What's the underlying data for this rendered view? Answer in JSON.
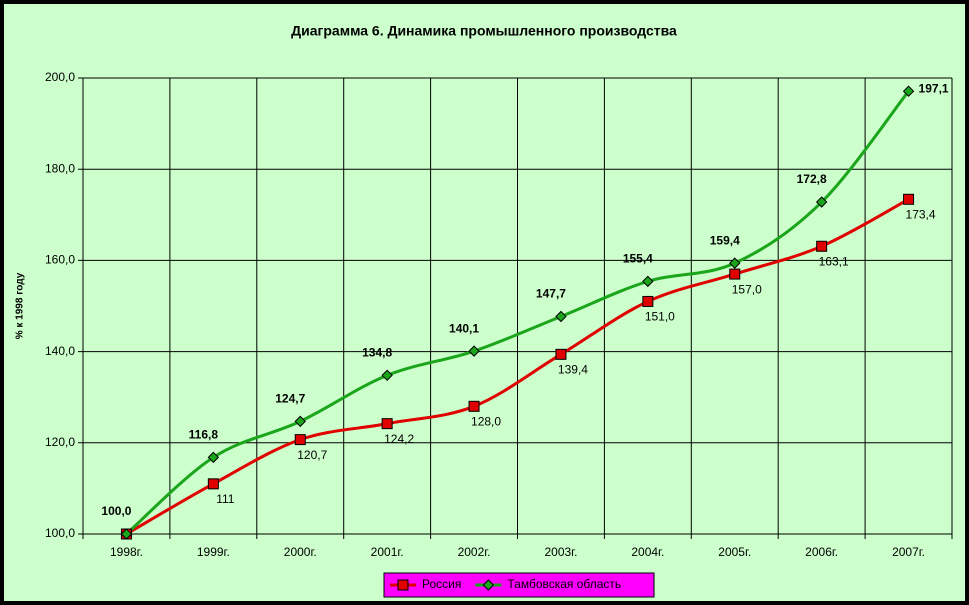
{
  "chart_data": {
    "type": "line",
    "title": "Диаграмма 6. Динамика промышленного производства",
    "y_label": "% к 1998 году",
    "categories": [
      "1998г.",
      "1999г.",
      "2000г.",
      "2001г.",
      "2002г.",
      "2003г.",
      "2004г.",
      "2005г.",
      "2006г.",
      "2007г."
    ],
    "series": [
      {
        "name": "Россия",
        "color": "#e00000",
        "marker": "square",
        "values": [
          100.0,
          111,
          120.7,
          124.2,
          128.0,
          139.4,
          151.0,
          157.0,
          163.1,
          173.4
        ],
        "value_labels": [
          null,
          "111",
          "120,7",
          "124,2",
          "128,0",
          "139,4",
          "151,0",
          "157,0",
          "163,1",
          "173,4"
        ]
      },
      {
        "name": "Тамбовская область",
        "color": "#1aa51a",
        "marker": "diamond",
        "values": [
          100.0,
          116.8,
          124.7,
          134.8,
          140.1,
          147.7,
          155.4,
          159.4,
          172.8,
          197.1
        ],
        "value_labels": [
          "100,0",
          "116,8",
          "124,7",
          "134,8",
          "140,1",
          "147,7",
          "155,4",
          "159,4",
          "172,8",
          "197,1"
        ]
      }
    ],
    "ylim": [
      100,
      200
    ],
    "yticks": [
      {
        "value": 100,
        "label": "100,0"
      },
      {
        "value": 120,
        "label": "120,0"
      },
      {
        "value": 140,
        "label": "140,0"
      },
      {
        "value": 160,
        "label": "160,0"
      },
      {
        "value": 180,
        "label": "180,0"
      },
      {
        "value": 200,
        "label": "200,0"
      }
    ],
    "grid": true,
    "legend": "bottom"
  }
}
